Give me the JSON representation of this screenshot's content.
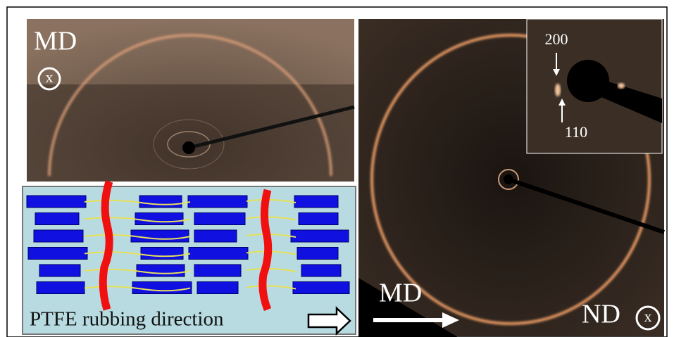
{
  "top_left_panel": {
    "label": "MD",
    "symbol": "x"
  },
  "inset": {
    "upper_label": "200",
    "lower_label": "110"
  },
  "schematic": {
    "caption": "PTFE rubbing direction"
  },
  "right_panel": {
    "arrow_label": "MD",
    "label": "ND",
    "symbol": "x"
  }
}
